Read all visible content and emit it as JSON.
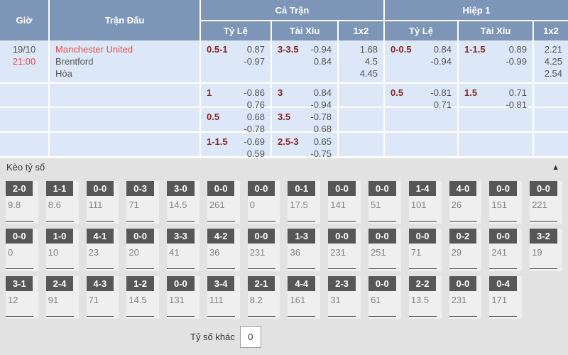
{
  "colors": {
    "header_bg": "#7d96b8",
    "row_bg": "#dce8f7",
    "accent_red": "#f0484c",
    "handicap_red": "#8f2323",
    "odds_text": "#555555",
    "section_bg": "#e2e2e2",
    "cell_bg": "#efefef",
    "badge_bg": "#575757",
    "text_dark": "#333333"
  },
  "table": {
    "headers": {
      "gio": "Giờ",
      "tran_dau": "Trận Đấu",
      "ca_tran": "Cả Trận",
      "hiep1": "Hiệp 1",
      "ty_le": "Tỷ Lệ",
      "tai_xiu": "Tài Xỉu",
      "one_x_two": "1x2"
    },
    "match": {
      "date": "19/10",
      "time": "21:00",
      "home": "Manchester United",
      "away": "Brentford",
      "draw": "Hòa"
    },
    "rows": [
      {
        "ct_hdp": "0.5-1",
        "ct_hdp_odds": [
          "0.87",
          "-0.97"
        ],
        "ct_ou": "3-3.5",
        "ct_ou_odds": [
          "-0.94",
          "0.84"
        ],
        "ct_1x2": [
          "1.68",
          "4.5",
          "4.45"
        ],
        "h1_hdp": "0-0.5",
        "h1_hdp_odds": [
          "0.84",
          "-0.94"
        ],
        "h1_ou": "1-1.5",
        "h1_ou_odds": [
          "0.89",
          "-0.99"
        ],
        "h1_1x2": [
          "2.21",
          "4.25",
          "2.54"
        ]
      },
      {
        "ct_hdp": "1",
        "ct_hdp_odds": [
          "-0.86",
          "0.76"
        ],
        "ct_ou": "3",
        "ct_ou_odds": [
          "0.84",
          "-0.94"
        ],
        "ct_1x2": [],
        "h1_hdp": "0.5",
        "h1_hdp_odds": [
          "-0.81",
          "0.71"
        ],
        "h1_ou": "1.5",
        "h1_ou_odds": [
          "0.71",
          "-0.81"
        ],
        "h1_1x2": []
      },
      {
        "ct_hdp": "0.5",
        "ct_hdp_odds": [
          "0.68",
          "-0.78"
        ],
        "ct_ou": "3.5",
        "ct_ou_odds": [
          "-0.78",
          "0.68"
        ],
        "ct_1x2": [],
        "h1_hdp": "",
        "h1_hdp_odds": [],
        "h1_ou": "",
        "h1_ou_odds": [],
        "h1_1x2": []
      },
      {
        "ct_hdp": "1-1.5",
        "ct_hdp_odds": [
          "-0.69",
          "0.59"
        ],
        "ct_ou": "2.5-3",
        "ct_ou_odds": [
          "0.65",
          "-0.75"
        ],
        "ct_1x2": [],
        "h1_hdp": "",
        "h1_hdp_odds": [],
        "h1_ou": "",
        "h1_ou_odds": [],
        "h1_1x2": []
      }
    ]
  },
  "score_section": {
    "title": "Kèo tỷ số",
    "collapse_icon": "▲",
    "rows": [
      [
        {
          "score": "2-0",
          "odds": "9.8"
        },
        {
          "score": "1-1",
          "odds": "8.6"
        },
        {
          "score": "0-0",
          "odds": "111"
        },
        {
          "score": "0-3",
          "odds": "71"
        },
        {
          "score": "3-0",
          "odds": "14.5"
        },
        {
          "score": "0-0",
          "odds": "261"
        },
        {
          "score": "0-0",
          "odds": "0"
        },
        {
          "score": "0-1",
          "odds": "17.5"
        },
        {
          "score": "0-0",
          "odds": "141"
        },
        {
          "score": "0-0",
          "odds": "51"
        },
        {
          "score": "1-4",
          "odds": "101"
        },
        {
          "score": "4-0",
          "odds": "26"
        },
        {
          "score": "0-0",
          "odds": "151"
        },
        {
          "score": "0-0",
          "odds": "221"
        }
      ],
      [
        {
          "score": "0-0",
          "odds": "0"
        },
        {
          "score": "1-0",
          "odds": "10"
        },
        {
          "score": "4-1",
          "odds": "23"
        },
        {
          "score": "0-0",
          "odds": "20"
        },
        {
          "score": "3-3",
          "odds": "41"
        },
        {
          "score": "4-2",
          "odds": "36"
        },
        {
          "score": "0-0",
          "odds": "231"
        },
        {
          "score": "1-3",
          "odds": "36"
        },
        {
          "score": "0-0",
          "odds": "231"
        },
        {
          "score": "0-0",
          "odds": "251"
        },
        {
          "score": "0-0",
          "odds": "71"
        },
        {
          "score": "0-2",
          "odds": "29"
        },
        {
          "score": "0-0",
          "odds": "241"
        },
        {
          "score": "3-2",
          "odds": "19"
        }
      ],
      [
        {
          "score": "3-1",
          "odds": "12"
        },
        {
          "score": "2-4",
          "odds": "91"
        },
        {
          "score": "4-3",
          "odds": "71"
        },
        {
          "score": "1-2",
          "odds": "14.5"
        },
        {
          "score": "0-0",
          "odds": "131"
        },
        {
          "score": "3-4",
          "odds": "111"
        },
        {
          "score": "2-1",
          "odds": "8.2"
        },
        {
          "score": "4-4",
          "odds": "161"
        },
        {
          "score": "2-3",
          "odds": "31"
        },
        {
          "score": "0-0",
          "odds": "61"
        },
        {
          "score": "2-2",
          "odds": "13.5"
        },
        {
          "score": "0-0",
          "odds": "231"
        },
        {
          "score": "0-4",
          "odds": "171"
        }
      ]
    ],
    "other": {
      "label": "Tỷ số khác",
      "value": "0"
    }
  }
}
